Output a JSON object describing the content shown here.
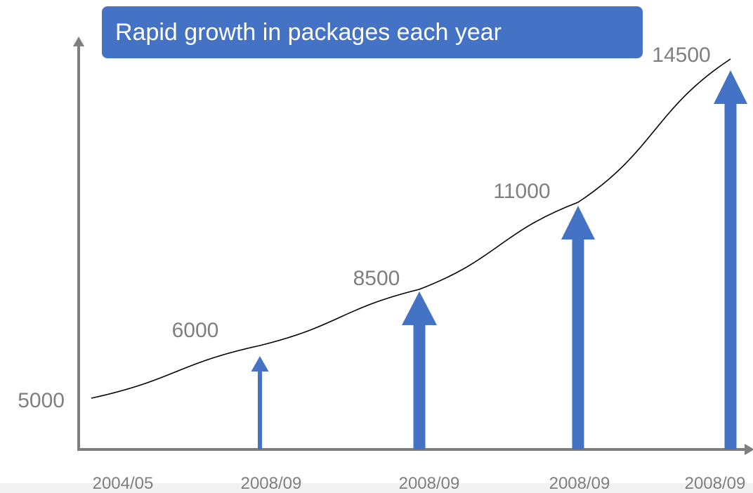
{
  "chart_data": {
    "type": "bar",
    "title": "Rapid growth in packages each year",
    "categories": [
      "2004/05",
      "2008/09",
      "2008/09",
      "2008/09",
      "2008/09"
    ],
    "values": [
      5000,
      6000,
      8500,
      11000,
      14500
    ],
    "value_labels": [
      "5000",
      "6000",
      "8500",
      "11000",
      "14500"
    ],
    "trend_line": true,
    "xlabel": "",
    "ylabel": "",
    "grid": false
  },
  "colors": {
    "bar": "#4472c4",
    "axis": "#7f7f7f",
    "label": "#7f7f7f",
    "curve": "#000000"
  }
}
